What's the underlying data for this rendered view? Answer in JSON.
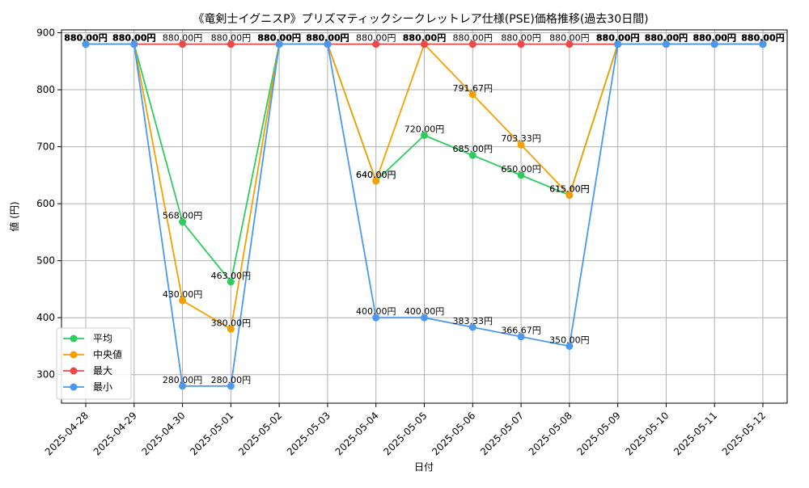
{
  "chart_data": {
    "type": "line",
    "title": "《竜剣士イグニスP》プリズマティックシークレットレア仕様(PSE)価格推移(過去30日間)",
    "xlabel": "日付",
    "ylabel": "値 (円)",
    "ylim": [
      250,
      905
    ],
    "yticks": [
      300,
      400,
      500,
      600,
      700,
      800,
      900
    ],
    "grid": true,
    "legend_position": "lower-left",
    "categories": [
      "2025-04-28",
      "2025-04-29",
      "2025-04-30",
      "2025-05-01",
      "2025-05-02",
      "2025-05-03",
      "2025-05-04",
      "2025-05-05",
      "2025-05-06",
      "2025-05-07",
      "2025-05-08",
      "2025-05-09",
      "2025-05-10",
      "2025-05-11",
      "2025-05-12"
    ],
    "value_suffix": "円",
    "series": [
      {
        "name": "平均",
        "color": "#2ecc5f",
        "values": [
          880,
          880,
          568,
          463,
          880,
          880,
          640,
          720,
          685,
          650,
          615,
          880,
          880,
          880,
          880
        ]
      },
      {
        "name": "中央値",
        "color": "#f5a000",
        "values": [
          880,
          880,
          430,
          380,
          880,
          880,
          640,
          880,
          791.67,
          703.33,
          615,
          880,
          880,
          880,
          880
        ]
      },
      {
        "name": "最大",
        "color": "#f04848",
        "values": [
          880,
          880,
          880,
          880,
          880,
          880,
          880,
          880,
          880,
          880,
          880,
          880,
          880,
          880,
          880
        ]
      },
      {
        "name": "最小",
        "color": "#4a98f0",
        "values": [
          880,
          880,
          280,
          280,
          880,
          880,
          400,
          400,
          383.33,
          366.67,
          350,
          880,
          880,
          880,
          880
        ]
      }
    ]
  }
}
